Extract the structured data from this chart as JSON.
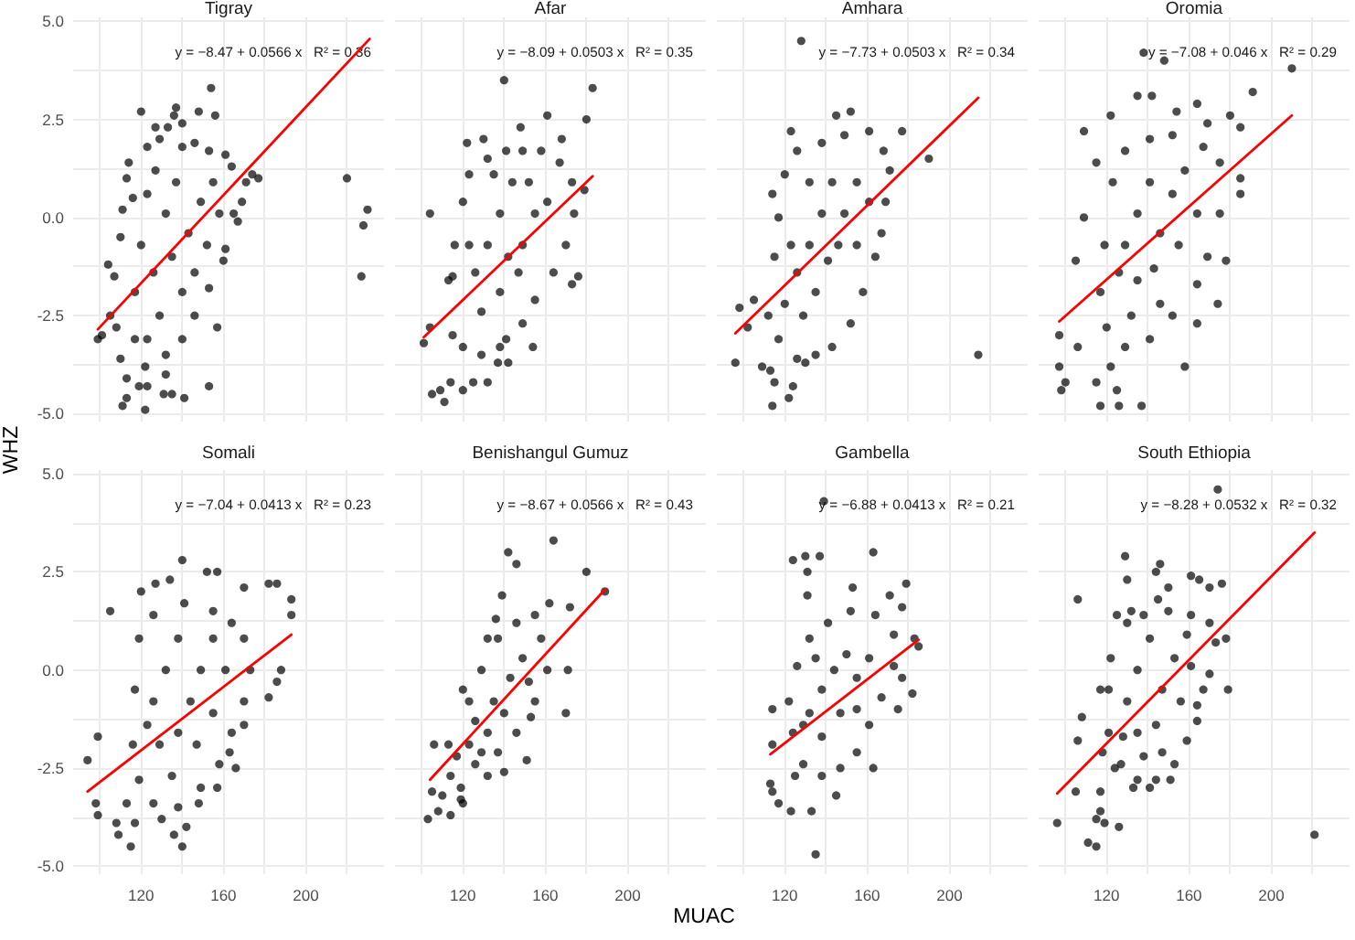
{
  "chart_data": [
    {
      "type": "scatter",
      "title": "Tigray",
      "ylabel": "WHZ",
      "annotations": [
        "y = −8.47 + 0.0566 x   R² = 0.36"
      ],
      "xlim": [
        87,
        238
      ],
      "ylim": [
        -5.2,
        5.1
      ],
      "xticks": [
        100,
        120,
        140,
        160,
        180,
        200,
        220
      ],
      "yticks": [
        {
          "value": -5,
          "label": "-5.0"
        },
        {
          "value": -3.75,
          "label": null
        },
        {
          "value": -2.5,
          "label": "-2.5"
        },
        {
          "value": -1.25,
          "label": null
        },
        {
          "value": 0,
          "label": "0.0"
        },
        {
          "value": 1.25,
          "label": null
        },
        {
          "value": 2.5,
          "label": "2.5"
        },
        {
          "value": 3.75,
          "label": null
        },
        {
          "value": 5,
          "label": "5.0"
        }
      ],
      "grid": true,
      "tick_labels": "y",
      "series": [
        {
          "color": "#000000",
          "marker": "circle",
          "x": [
            99,
            101,
            105,
            104,
            107,
            110,
            111,
            113,
            116,
            113,
            110,
            108,
            111,
            113,
            119,
            122,
            123,
            131,
            135,
            141,
            153,
            132,
            122,
            114,
            120,
            127,
            133,
            136,
            137,
            140,
            148,
            154,
            156,
            123,
            129,
            140,
            146,
            153,
            161,
            164,
            174,
            177,
            171,
            169,
            165,
            167,
            161,
            160,
            153,
            157,
            220,
            230,
            228,
            227,
            120,
            126,
            132,
            135,
            140,
            143,
            146,
            149,
            152,
            137,
            129,
            123,
            132,
            140,
            146,
            117,
            123,
            127,
            155,
            158,
            117
          ],
          "values": [
            -3.1,
            -3.0,
            -2.5,
            -1.2,
            -1.5,
            -0.5,
            0.2,
            1.0,
            0.5,
            -4.1,
            -3.6,
            -2.8,
            -4.8,
            -4.6,
            -4.3,
            -4.9,
            -4.3,
            -4.5,
            -4.5,
            -4.6,
            -4.3,
            -4.0,
            -3.8,
            1.4,
            2.7,
            2.3,
            2.3,
            2.6,
            2.8,
            2.4,
            2.7,
            3.3,
            2.6,
            1.8,
            2.0,
            1.8,
            1.9,
            1.7,
            1.6,
            1.3,
            1.1,
            1.0,
            0.9,
            0.4,
            0.1,
            -0.1,
            -0.8,
            -1.1,
            -1.8,
            -2.8,
            1.0,
            0.2,
            -0.2,
            -1.5,
            -0.7,
            -1.4,
            0.1,
            -1.0,
            -1.9,
            -0.4,
            -1.4,
            0.4,
            -0.7,
            0.9,
            -2.5,
            -3.1,
            -3.5,
            -3.1,
            -2.5,
            -1.9,
            0.6,
            1.2,
            0.9,
            0.1,
            -3.1
          ]
        },
        {
          "type": "line",
          "color": "#ff0000",
          "x": [
            99,
            231
          ],
          "values": [
            -2.85,
            4.55
          ]
        }
      ]
    },
    {
      "type": "scatter",
      "title": "Afar",
      "annotations": [
        "y = −8.09 + 0.0503 x   R² = 0.35"
      ],
      "xlim": [
        87,
        238
      ],
      "ylim": [
        -5.2,
        5.1
      ],
      "xticks": [
        100,
        120,
        140,
        160,
        180,
        200,
        220
      ],
      "yticks": [
        -5,
        -3.75,
        -2.5,
        -1.25,
        0,
        1.25,
        2.5,
        3.75,
        5
      ],
      "grid": true,
      "tick_labels": false,
      "series": [
        {
          "color": "#000000",
          "marker": "circle",
          "x": [
            101,
            104,
            105,
            109,
            111,
            114,
            120,
            125,
            132,
            137,
            142,
            154,
            122,
            130,
            140,
            148,
            161,
            168,
            180,
            183,
            179,
            176,
            173,
            138,
            116,
            115,
            104,
            113,
            120,
            123,
            132,
            141,
            149,
            158,
            167,
            173,
            174,
            170,
            164,
            155,
            149,
            141,
            129,
            120,
            115,
            126,
            132,
            138,
            144,
            149,
            155,
            138,
            147,
            129,
            161,
            123,
            135,
            152,
            142
          ],
          "values": [
            -3.2,
            0.1,
            -4.5,
            -4.4,
            -4.7,
            -4.2,
            -4.4,
            -4.2,
            -4.2,
            -3.7,
            -3.7,
            -3.3,
            1.9,
            2.0,
            3.5,
            2.3,
            2.6,
            2.0,
            2.5,
            3.3,
            0.7,
            -1.5,
            -1.7,
            -3.3,
            -0.7,
            -1.5,
            -2.8,
            -1.6,
            0.4,
            1.1,
            1.5,
            1.7,
            1.7,
            1.7,
            1.4,
            0.9,
            0.1,
            -0.7,
            -1.4,
            -2.1,
            -2.7,
            -3.1,
            -3.5,
            -3.3,
            -3.0,
            -1.4,
            -0.7,
            0.1,
            0.9,
            -0.7,
            0.1,
            -1.9,
            -1.4,
            -2.4,
            0.4,
            -0.7,
            1.1,
            0.9,
            -1.0
          ]
        },
        {
          "type": "line",
          "color": "#ff0000",
          "x": [
            101,
            183
          ],
          "values": [
            -3.05,
            1.05
          ]
        }
      ]
    },
    {
      "type": "scatter",
      "title": "Amhara",
      "annotations": [
        "y = −7.73 + 0.0503 x   R² = 0.34"
      ],
      "xlim": [
        87,
        238
      ],
      "ylim": [
        -5.2,
        5.1
      ],
      "xticks": [
        100,
        120,
        140,
        160,
        180,
        200,
        220
      ],
      "yticks": [
        -5,
        -3.75,
        -2.5,
        -1.25,
        0,
        1.25,
        2.5,
        3.75,
        5
      ],
      "grid": true,
      "tick_labels": false,
      "series": [
        {
          "color": "#000000",
          "marker": "circle",
          "x": [
            128,
            96,
            98,
            109,
            113,
            115,
            114,
            122,
            124,
            130,
            214,
            190,
            177,
            152,
            145,
            123,
            114,
            105,
            102,
            115,
            117,
            120,
            126,
            138,
            149,
            161,
            168,
            171,
            169,
            167,
            164,
            158,
            152,
            143,
            135,
            126,
            117,
            112,
            126,
            132,
            138,
            143,
            149,
            155,
            135,
            141,
            146,
            129,
            123,
            132,
            155,
            120,
            161
          ],
          "values": [
            4.5,
            -3.7,
            -2.3,
            -3.8,
            -3.9,
            -4.2,
            -4.8,
            -4.6,
            -4.3,
            -3.7,
            -3.5,
            1.5,
            2.2,
            2.7,
            2.6,
            2.2,
            0.6,
            -2.1,
            -2.8,
            -1.0,
            0.0,
            1.1,
            1.7,
            1.9,
            2.1,
            2.2,
            1.7,
            1.2,
            0.4,
            -0.4,
            -1.0,
            -1.9,
            -2.7,
            -3.3,
            -3.5,
            -3.6,
            -3.1,
            -2.5,
            -1.4,
            -0.7,
            0.1,
            0.9,
            0.1,
            0.9,
            -1.9,
            -1.1,
            -0.7,
            -2.5,
            -0.7,
            0.9,
            -0.7,
            -2.2,
            0.4
          ]
        },
        {
          "type": "line",
          "color": "#ff0000",
          "x": [
            96,
            214
          ],
          "values": [
            -2.95,
            3.05
          ]
        }
      ]
    },
    {
      "type": "scatter",
      "title": "Oromia",
      "annotations": [
        "y = −7.08 + 0.046 x   R² = 0.29"
      ],
      "xlim": [
        87,
        238
      ],
      "ylim": [
        -5.2,
        5.1
      ],
      "xticks": [
        100,
        120,
        140,
        160,
        180,
        200,
        220
      ],
      "yticks": [
        -5,
        -3.75,
        -2.5,
        -1.25,
        0,
        1.25,
        2.5,
        3.75,
        5
      ],
      "grid": true,
      "tick_labels": false,
      "series": [
        {
          "color": "#000000",
          "marker": "circle",
          "x": [
            210,
            191,
            148,
            138,
            97,
            97,
            98,
            100,
            106,
            105,
            109,
            115,
            109,
            117,
            126,
            125,
            137,
            115,
            122,
            122,
            135,
            142,
            154,
            164,
            169,
            180,
            185,
            185,
            185,
            178,
            174,
            164,
            158,
            123,
            129,
            141,
            152,
            167,
            175,
            175,
            169,
            164,
            152,
            141,
            129,
            120,
            117,
            119,
            129,
            135,
            141,
            146,
            152,
            158,
            135,
            143,
            155,
            164,
            132,
            146,
            126
          ],
          "values": [
            3.8,
            3.2,
            4.0,
            4.2,
            -3.0,
            -3.8,
            -4.4,
            -4.2,
            -3.3,
            -1.1,
            0.0,
            1.4,
            2.2,
            -4.8,
            -4.8,
            -4.4,
            -4.8,
            -4.2,
            -3.8,
            2.6,
            3.1,
            3.1,
            2.7,
            2.9,
            2.4,
            2.6,
            2.3,
            0.6,
            1.0,
            -1.1,
            -2.2,
            -2.7,
            -3.8,
            0.9,
            1.7,
            2.0,
            2.1,
            1.8,
            1.4,
            0.1,
            -1.0,
            -1.7,
            -2.5,
            -3.1,
            -3.3,
            -2.8,
            -1.9,
            -0.7,
            -0.7,
            0.1,
            0.9,
            -0.4,
            0.6,
            1.2,
            -1.6,
            -1.3,
            -0.7,
            0.1,
            -2.5,
            -2.2,
            -1.4
          ]
        },
        {
          "type": "line",
          "color": "#ff0000",
          "x": [
            97,
            210
          ],
          "values": [
            -2.65,
            2.6
          ]
        }
      ]
    },
    {
      "type": "scatter",
      "title": "Somali",
      "annotations": [
        "y = −7.04 + 0.0413 x   R² = 0.23"
      ],
      "xlim": [
        87,
        238
      ],
      "ylim": [
        -5.2,
        5.1
      ],
      "xticks": [
        {
          "value": 100,
          "label": null
        },
        120,
        {
          "value": 140,
          "label": null
        },
        160,
        {
          "value": 180,
          "label": null
        },
        200,
        {
          "value": 220,
          "label": null
        }
      ],
      "yticks": [
        {
          "value": -5,
          "label": "-5.0"
        },
        {
          "value": -3.75,
          "label": null
        },
        {
          "value": -2.5,
          "label": "-2.5"
        },
        {
          "value": -1.25,
          "label": null
        },
        {
          "value": 0,
          "label": "0.0"
        },
        {
          "value": 1.25,
          "label": null
        },
        {
          "value": 2.5,
          "label": "2.5"
        },
        {
          "value": 3.75,
          "label": null
        },
        {
          "value": 5,
          "label": "5.0"
        }
      ],
      "grid": true,
      "series": [
        {
          "color": "#000000",
          "marker": "circle",
          "x": [
            94,
            98,
            99,
            99,
            105,
            108,
            109,
            113,
            115,
            117,
            140,
            142,
            136,
            130,
            120,
            127,
            134,
            140,
            152,
            157,
            170,
            182,
            186,
            193,
            193,
            188,
            186,
            182,
            170,
            166,
            163,
            157,
            148,
            117,
            119,
            126,
            141,
            155,
            164,
            170,
            173,
            170,
            164,
            158,
            149,
            138,
            126,
            119,
            116,
            126,
            132,
            138,
            144,
            149,
            155,
            129,
            138,
            147,
            155,
            135,
            123,
            161
          ],
          "values": [
            -2.3,
            -3.4,
            -3.7,
            -1.7,
            1.5,
            -3.9,
            -4.2,
            -3.4,
            -4.5,
            -3.9,
            -4.5,
            -4.0,
            -4.2,
            -3.8,
            2.0,
            2.2,
            2.3,
            2.8,
            2.5,
            2.5,
            2.1,
            2.2,
            2.2,
            1.8,
            1.4,
            0.0,
            -0.3,
            -0.7,
            -1.4,
            -2.5,
            -2.1,
            -3.0,
            -3.4,
            -0.5,
            0.8,
            1.4,
            1.7,
            1.5,
            1.2,
            0.8,
            0.0,
            -0.8,
            -1.6,
            -2.4,
            -3.0,
            -3.5,
            -3.4,
            -2.8,
            -1.9,
            -0.8,
            0.0,
            0.8,
            -0.8,
            0.0,
            0.8,
            -1.9,
            -1.6,
            -1.9,
            -1.1,
            -2.7,
            -1.4,
            0.0
          ]
        },
        {
          "type": "line",
          "color": "#ff0000",
          "x": [
            94,
            193
          ],
          "values": [
            -3.1,
            0.9
          ]
        }
      ]
    },
    {
      "type": "scatter",
      "title": "Benishangul Gumuz",
      "xlabel": "MUAC",
      "annotations": [
        "y = −8.67 + 0.0566 x   R² = 0.43"
      ],
      "xlim": [
        87,
        238
      ],
      "ylim": [
        -5.2,
        5.1
      ],
      "xticks": [
        {
          "value": 100,
          "label": null
        },
        120,
        {
          "value": 140,
          "label": null
        },
        160,
        {
          "value": 180,
          "label": null
        },
        200,
        {
          "value": 220,
          "label": null
        }
      ],
      "yticks": [
        -5,
        -3.75,
        -2.5,
        -1.25,
        0,
        1.25,
        2.5,
        3.75,
        5
      ],
      "grid": true,
      "tick_labels": "x",
      "series": [
        {
          "color": "#000000",
          "marker": "circle",
          "x": [
            103,
            105,
            108,
            114,
            110,
            106,
            113,
            119,
            120,
            119,
            164,
            142,
            146,
            139,
            162,
            180,
            189,
            172,
            136,
            132,
            171,
            170,
            153,
            151,
            140,
            132,
            123,
            120,
            123,
            129,
            137,
            146,
            155,
            158,
            161,
            155,
            146,
            137,
            129,
            126,
            135,
            143,
            149,
            140,
            132,
            152,
            126,
            117,
            114
          ],
          "values": [
            -3.8,
            -3.1,
            -3.6,
            -3.7,
            -3.2,
            -1.9,
            -1.9,
            -3.0,
            -3.4,
            -3.3,
            3.3,
            3.0,
            2.7,
            1.9,
            1.7,
            2.5,
            2.0,
            1.6,
            1.3,
            0.8,
            0.0,
            -1.1,
            -1.2,
            -2.3,
            -2.6,
            -2.7,
            -1.9,
            -0.5,
            -0.8,
            0.0,
            0.8,
            1.2,
            1.4,
            0.8,
            0.0,
            -0.8,
            -1.6,
            -2.1,
            -2.1,
            -1.3,
            -0.8,
            -0.2,
            0.3,
            -1.1,
            -1.6,
            -0.3,
            -2.4,
            -2.2,
            -2.7
          ]
        },
        {
          "type": "line",
          "color": "#ff0000",
          "x": [
            104,
            189
          ],
          "values": [
            -2.8,
            2.05
          ]
        }
      ]
    },
    {
      "type": "scatter",
      "title": "Gambella",
      "annotations": [
        "y = −6.88 + 0.0413 x   R² = 0.21"
      ],
      "xlim": [
        87,
        238
      ],
      "ylim": [
        -5.2,
        5.1
      ],
      "xticks": [
        {
          "value": 100,
          "label": null
        },
        120,
        {
          "value": 140,
          "label": null
        },
        160,
        {
          "value": 180,
          "label": null
        },
        200,
        {
          "value": 220,
          "label": null
        }
      ],
      "yticks": [
        -5,
        -3.75,
        -2.5,
        -1.25,
        0,
        1.25,
        2.5,
        3.75,
        5
      ],
      "grid": true,
      "tick_labels": "x",
      "series": [
        {
          "color": "#000000",
          "marker": "circle",
          "x": [
            135,
            133,
            123,
            117,
            114,
            113,
            114,
            114,
            124,
            130,
            131,
            137,
            131,
            139,
            163,
            153,
            171,
            179,
            177,
            183,
            185,
            177,
            182,
            175,
            163,
            145,
            125,
            126,
            132,
            141,
            152,
            164,
            173,
            173,
            167,
            161,
            155,
            147,
            138,
            129,
            124,
            122,
            132,
            138,
            144,
            150,
            155,
            147,
            138,
            155,
            161,
            135,
            129
          ],
          "values": [
            -4.7,
            -3.6,
            -3.6,
            -3.4,
            -3.1,
            -2.9,
            -1.0,
            -1.9,
            2.8,
            2.9,
            2.5,
            2.9,
            1.9,
            4.3,
            3.0,
            2.1,
            1.9,
            2.2,
            1.6,
            0.8,
            0.6,
            -0.2,
            -0.6,
            -1.0,
            -2.5,
            -3.2,
            -2.7,
            0.1,
            0.8,
            1.2,
            1.5,
            1.4,
            0.9,
            0.1,
            -0.7,
            -1.4,
            -2.1,
            -2.5,
            -2.7,
            -2.4,
            -1.6,
            -0.8,
            -1.1,
            -0.5,
            0.0,
            0.4,
            -0.2,
            -1.1,
            -1.7,
            -1.0,
            0.3,
            0.3,
            -1.4
          ]
        },
        {
          "type": "line",
          "color": "#ff0000",
          "x": [
            113,
            185
          ],
          "values": [
            -2.15,
            0.77
          ]
        }
      ]
    },
    {
      "type": "scatter",
      "title": "South Ethiopia",
      "annotations": [
        "y = −8.28 + 0.0532 x   R² = 0.32"
      ],
      "xlim": [
        87,
        238
      ],
      "ylim": [
        -5.2,
        5.1
      ],
      "xticks": [
        {
          "value": 100,
          "label": null
        },
        120,
        {
          "value": 140,
          "label": null
        },
        160,
        {
          "value": 180,
          "label": null
        },
        200,
        {
          "value": 220,
          "label": null
        }
      ],
      "yticks": [
        -5,
        -3.75,
        -2.5,
        -1.25,
        0,
        1.25,
        2.5,
        3.75,
        5
      ],
      "grid": true,
      "tick_labels": "x",
      "series": [
        {
          "color": "#000000",
          "marker": "circle",
          "x": [
            174,
            221,
            96,
            105,
            106,
            108,
            106,
            111,
            115,
            115,
            117,
            119,
            126,
            117,
            129,
            146,
            144,
            130,
            150,
            161,
            165,
            170,
            176,
            145,
            125,
            132,
            178,
            179,
            167,
            164,
            151,
            141,
            133,
            124,
            118,
            117,
            122,
            130,
            138,
            150,
            161,
            170,
            173,
            170,
            164,
            159,
            153,
            144,
            135,
            127,
            121,
            121,
            130,
            135,
            141,
            147,
            153,
            159,
            135,
            144,
            156,
            161,
            138,
            147,
            128
          ],
          "values": [
            4.6,
            -4.2,
            -3.9,
            -3.1,
            1.8,
            -1.2,
            -1.8,
            -4.4,
            -4.5,
            -3.8,
            -3.6,
            -3.9,
            -4.0,
            -3.1,
            2.9,
            2.7,
            2.5,
            2.3,
            2.1,
            2.4,
            2.3,
            2.1,
            2.2,
            1.8,
            1.4,
            1.5,
            0.8,
            -0.5,
            -0.5,
            -1.3,
            -2.8,
            -3.0,
            -3.0,
            -2.5,
            -2.1,
            -0.5,
            0.3,
            1.2,
            1.4,
            1.5,
            1.4,
            1.2,
            0.7,
            -0.1,
            -0.9,
            -1.8,
            -2.4,
            -2.8,
            -2.8,
            -2.4,
            -1.6,
            -0.5,
            -0.8,
            0.0,
            0.8,
            -0.5,
            0.3,
            0.9,
            -1.6,
            -1.4,
            -0.8,
            0.1,
            -2.2,
            -2.1,
            -1.7
          ]
        },
        {
          "type": "line",
          "color": "#ff0000",
          "x": [
            96,
            221
          ],
          "values": [
            -3.15,
            3.5
          ]
        }
      ]
    }
  ]
}
